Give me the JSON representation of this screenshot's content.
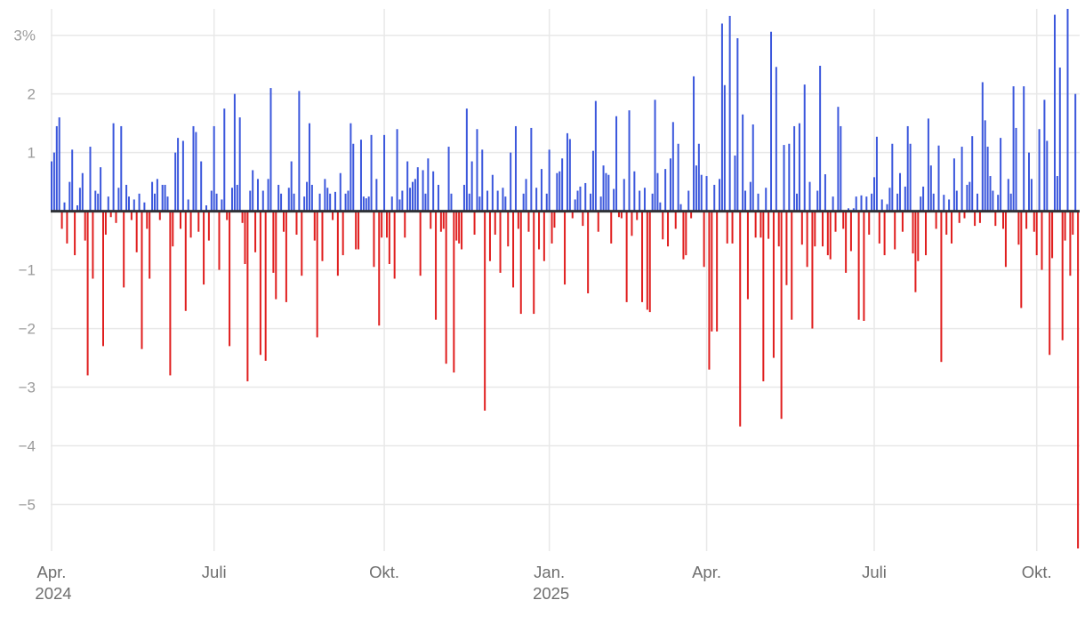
{
  "chart_data": {
    "type": "bar",
    "title": "",
    "description": "Daily percentage change bar chart, positive days blue, negative days red",
    "unit": "%",
    "ylim": [
      -5.75,
      3.45
    ],
    "grid": true,
    "legend_position": "none",
    "colors": {
      "positive": "#3B57DC",
      "negative": "#E01E1E",
      "zero_axis": "#2F3237",
      "gridline": "#E8E8E8",
      "y_tick_label": "#9B9B9B",
      "x_tick_label": "#6E6E6E",
      "background": "#FFFFFF"
    },
    "y_ticks": [
      {
        "label": "3%",
        "value": 3
      },
      {
        "label": "2",
        "value": 2
      },
      {
        "label": "1",
        "value": 1
      },
      {
        "label": "−1",
        "value": -1
      },
      {
        "label": "−2",
        "value": -2
      },
      {
        "label": "−3",
        "value": -3
      },
      {
        "label": "−4",
        "value": -4
      },
      {
        "label": "−5",
        "value": -5
      }
    ],
    "x_ticks": [
      {
        "label": "Apr.",
        "sublabel": "2024",
        "index": 0
      },
      {
        "label": "Juli",
        "sublabel": "",
        "index": 63
      },
      {
        "label": "Okt.",
        "sublabel": "",
        "index": 129
      },
      {
        "label": "Jan.",
        "sublabel": "2025",
        "index": 193
      },
      {
        "label": "Apr.",
        "sublabel": "",
        "index": 254
      },
      {
        "label": "Juli",
        "sublabel": "",
        "index": 319
      },
      {
        "label": "Okt.",
        "sublabel": "",
        "index": 382
      }
    ],
    "values": [
      0.85,
      1.0,
      1.45,
      1.6,
      -0.3,
      0.15,
      -0.55,
      0.5,
      1.05,
      -0.75,
      0.1,
      0.4,
      0.65,
      -0.5,
      -2.8,
      1.1,
      -1.15,
      0.35,
      0.3,
      0.75,
      -2.3,
      -0.4,
      0.25,
      -0.1,
      1.5,
      -0.2,
      0.4,
      1.45,
      -1.3,
      0.45,
      0.25,
      -0.15,
      0.2,
      -0.7,
      0.3,
      -2.35,
      0.15,
      -0.3,
      -1.15,
      0.5,
      0.3,
      0.55,
      -0.15,
      0.45,
      0.45,
      0.25,
      -2.8,
      -0.6,
      1.0,
      1.25,
      -0.3,
      1.2,
      -1.7,
      0.2,
      -0.45,
      1.45,
      1.35,
      -0.35,
      0.85,
      -1.25,
      0.1,
      -0.5,
      0.35,
      1.45,
      0.3,
      -1.0,
      0.2,
      1.75,
      -0.15,
      -2.3,
      0.4,
      2.0,
      0.45,
      1.6,
      -0.2,
      -0.9,
      -2.9,
      0.35,
      0.7,
      -0.7,
      0.55,
      -2.45,
      0.35,
      -2.55,
      0.55,
      2.1,
      -1.05,
      -1.5,
      0.45,
      0.3,
      -0.35,
      -1.55,
      0.4,
      0.85,
      0.3,
      -0.4,
      2.05,
      -1.1,
      0.25,
      0.5,
      1.5,
      0.45,
      -0.5,
      -2.15,
      0.3,
      -0.85,
      0.55,
      0.4,
      0.3,
      -0.15,
      0.33,
      -1.1,
      0.65,
      -0.75,
      0.3,
      0.35,
      1.5,
      1.15,
      -0.65,
      -0.65,
      1.22,
      0.25,
      0.22,
      0.25,
      1.3,
      -0.95,
      0.55,
      -1.95,
      -0.45,
      1.3,
      -0.45,
      -0.9,
      0.25,
      -1.15,
      1.4,
      0.2,
      0.35,
      -0.45,
      0.85,
      0.4,
      0.5,
      0.55,
      0.75,
      -1.1,
      0.7,
      0.3,
      0.9,
      -0.3,
      0.68,
      -1.85,
      0.45,
      -0.35,
      -0.3,
      -2.6,
      1.1,
      0.3,
      -2.75,
      -0.5,
      -0.55,
      -0.65,
      0.45,
      1.75,
      0.3,
      0.85,
      -0.4,
      1.4,
      0.25,
      1.05,
      -3.4,
      0.35,
      -0.85,
      0.62,
      -0.4,
      0.35,
      -1.05,
      0.4,
      0.25,
      -0.6,
      1.0,
      -1.3,
      1.45,
      -0.3,
      -1.75,
      0.3,
      0.55,
      -0.35,
      1.42,
      -1.75,
      0.4,
      -0.65,
      0.72,
      -0.85,
      0.3,
      1.05,
      -0.55,
      -0.28,
      0.65,
      0.68,
      0.9,
      -1.25,
      1.33,
      1.23,
      -0.12,
      0.2,
      0.35,
      0.42,
      -0.25,
      0.48,
      -1.4,
      0.3,
      1.03,
      1.88,
      -0.35,
      0.25,
      0.78,
      0.65,
      0.62,
      -0.55,
      0.38,
      1.62,
      -0.1,
      -0.12,
      0.55,
      -1.55,
      1.72,
      -0.42,
      0.68,
      -0.15,
      0.35,
      -1.55,
      0.4,
      -1.68,
      -1.72,
      0.3,
      1.9,
      0.65,
      0.15,
      -0.48,
      0.72,
      -0.6,
      0.9,
      1.52,
      -0.3,
      1.15,
      0.12,
      -0.82,
      -0.75,
      0.35,
      -0.12,
      2.3,
      0.78,
      1.15,
      0.62,
      -0.95,
      0.6,
      -2.7,
      -2.05,
      0.45,
      -2.05,
      0.55,
      3.2,
      2.15,
      -0.55,
      3.33,
      -0.55,
      0.95,
      2.95,
      -3.67,
      1.65,
      0.35,
      -1.5,
      0.5,
      1.48,
      -0.45,
      0.3,
      -0.45,
      -2.9,
      0.4,
      -0.47,
      3.06,
      -2.5,
      2.46,
      -0.6,
      -3.54,
      1.13,
      -1.26,
      1.15,
      -1.85,
      1.45,
      0.3,
      1.5,
      -0.57,
      2.16,
      -0.95,
      0.5,
      -2.0,
      -0.6,
      0.35,
      2.48,
      -0.6,
      0.63,
      -0.75,
      -0.82,
      0.25,
      -0.35,
      1.78,
      1.45,
      -0.3,
      -1.05,
      0.05,
      -0.68,
      0.05,
      0.25,
      -1.85,
      0.27,
      -1.87,
      0.25,
      -0.4,
      0.3,
      0.58,
      1.27,
      -0.55,
      0.2,
      -0.75,
      0.12,
      0.4,
      1.15,
      -0.65,
      0.3,
      0.65,
      -0.35,
      0.42,
      1.45,
      1.15,
      -0.72,
      -1.38,
      -0.85,
      0.25,
      0.42,
      -0.75,
      1.58,
      0.78,
      0.3,
      -0.3,
      1.12,
      -2.57,
      0.28,
      -0.4,
      0.2,
      -0.55,
      0.9,
      0.35,
      -0.2,
      1.1,
      -0.12,
      0.45,
      0.5,
      1.28,
      -0.25,
      0.3,
      -0.2,
      2.2,
      1.55,
      1.1,
      0.6,
      0.35,
      -0.25,
      0.28,
      1.25,
      -0.3,
      -0.95,
      0.55,
      0.3,
      2.13,
      1.42,
      -0.57,
      -1.65,
      2.13,
      -0.3,
      1.0,
      0.55,
      -0.35,
      -0.75,
      1.4,
      -1.0,
      1.9,
      1.2,
      -2.45,
      -0.8,
      3.35,
      0.6,
      2.45,
      -2.2,
      -0.5,
      3.45,
      -1.1,
      -0.4,
      2.0,
      -5.75
    ]
  }
}
